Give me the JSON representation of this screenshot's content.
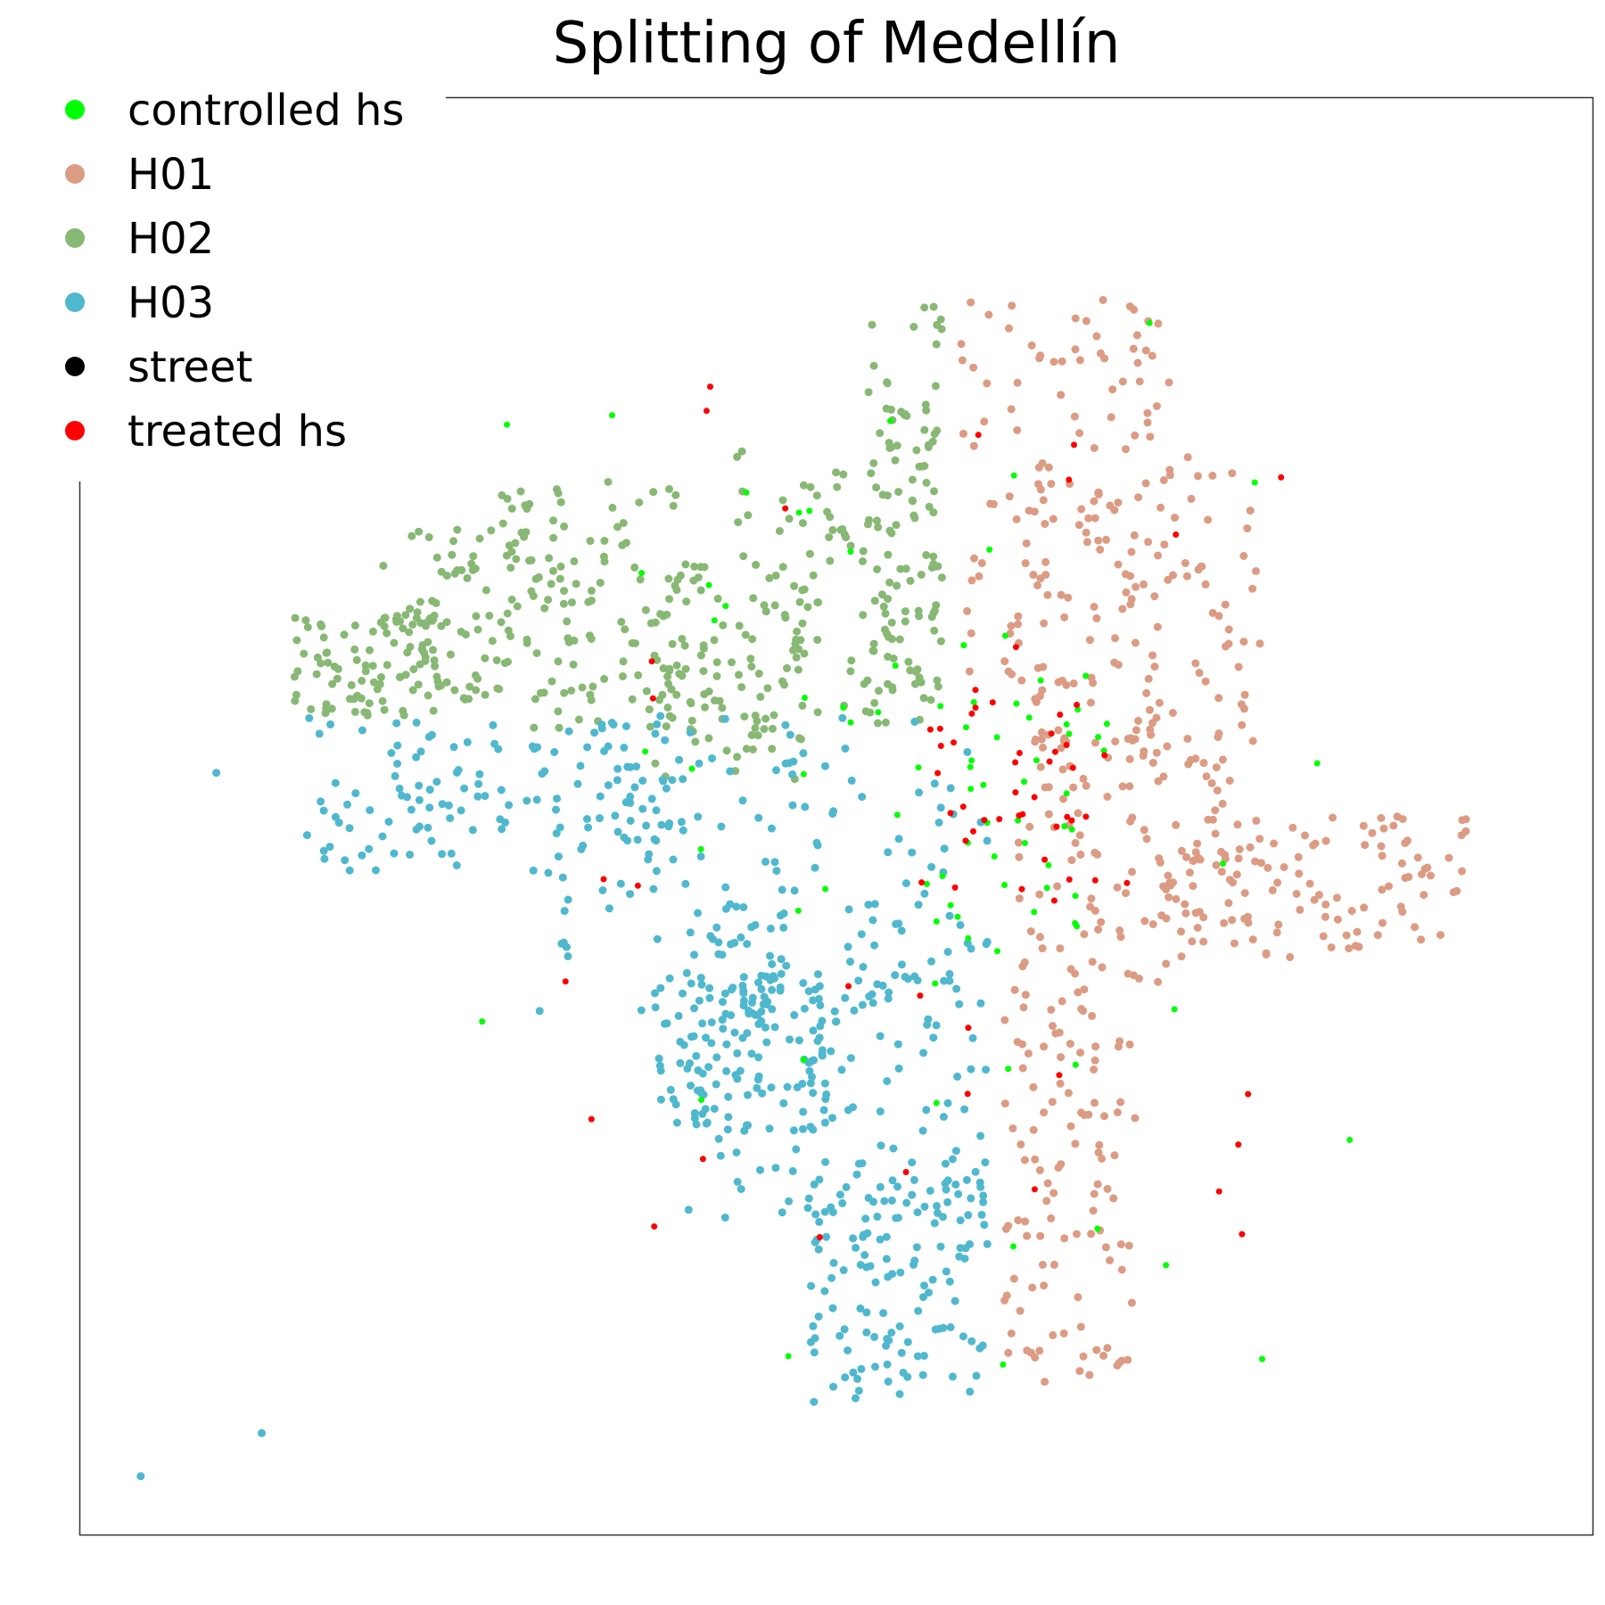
{
  "chart_data": {
    "type": "scatter",
    "title": "Splitting of Medellín",
    "xlabel": "",
    "ylabel": "",
    "axes_visible": false,
    "grid": false,
    "legend_placement": "top-left",
    "legend": [
      {
        "name": "controlled hs",
        "color": "#00ff00"
      },
      {
        "name": "H01",
        "color": "#dc9b83"
      },
      {
        "name": "H02",
        "color": "#87b874"
      },
      {
        "name": "H03",
        "color": "#4fb8ce"
      },
      {
        "name": "street",
        "color": "#000000"
      },
      {
        "name": "treated hs",
        "color": "#ff0000"
      }
    ],
    "xlim": [
      0,
      100
    ],
    "ylim": [
      0,
      100
    ],
    "series": [
      {
        "name": "H02",
        "color": "#87b874",
        "regions": [
          {
            "x": [
              52,
              57
            ],
            "y": [
              58,
              86
            ]
          },
          {
            "x": [
              43,
              57
            ],
            "y": [
              56,
              76
            ]
          },
          {
            "x": [
              38,
              48
            ],
            "y": [
              52,
              68
            ]
          },
          {
            "x": [
              27,
              40
            ],
            "y": [
              56,
              74
            ]
          },
          {
            "x": [
              20,
              34
            ],
            "y": [
              58,
              70
            ]
          },
          {
            "x": [
              14,
              24
            ],
            "y": [
              57,
              64
            ]
          }
        ]
      },
      {
        "name": "H01",
        "color": "#dc9b83",
        "regions": [
          {
            "x": [
              58,
              72
            ],
            "y": [
              58,
              86
            ]
          },
          {
            "x": [
              63,
              78
            ],
            "y": [
              52,
              75
            ]
          },
          {
            "x": [
              62,
              76
            ],
            "y": [
              38,
              58
            ]
          },
          {
            "x": [
              72,
              92
            ],
            "y": [
              40,
              50
            ]
          },
          {
            "x": [
              61,
              70
            ],
            "y": [
              10,
              38
            ]
          }
        ]
      },
      {
        "name": "H03",
        "color": "#4fb8ce",
        "regions": [
          {
            "x": [
              15,
              40
            ],
            "y": [
              46,
              57
            ]
          },
          {
            "x": [
              30,
              60
            ],
            "y": [
              36,
              57
            ]
          },
          {
            "x": [
              40,
              60
            ],
            "y": [
              22,
              44
            ]
          },
          {
            "x": [
              48,
              60
            ],
            "y": [
              9,
              25
            ]
          },
          {
            "x": [
              38,
              50
            ],
            "y": [
              28,
              39
            ]
          }
        ],
        "outliers": [
          {
            "x": 12,
            "y": 7
          },
          {
            "x": 4,
            "y": 4
          },
          {
            "x": 9,
            "y": 53
          }
        ]
      },
      {
        "name": "controlled hs",
        "color": "#00ff00",
        "regions": [
          {
            "x": [
              55,
              68
            ],
            "y": [
              42,
              58
            ]
          },
          {
            "x": [
              40,
              66
            ],
            "y": [
              30,
              78
            ]
          },
          {
            "x": [
              15,
              85
            ],
            "y": [
              10,
              85
            ]
          }
        ]
      },
      {
        "name": "treated hs",
        "color": "#ff0000",
        "regions": [
          {
            "x": [
              56,
              68
            ],
            "y": [
              44,
              58
            ]
          },
          {
            "x": [
              30,
              80
            ],
            "y": [
              20,
              80
            ]
          }
        ]
      }
    ]
  }
}
